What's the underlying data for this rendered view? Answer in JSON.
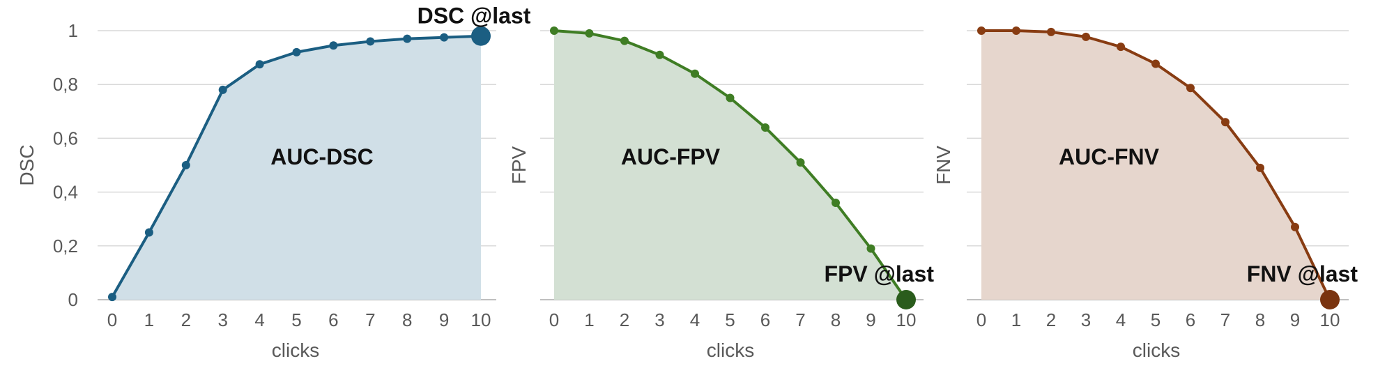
{
  "chart_data": [
    {
      "type": "area",
      "x": [
        0,
        1,
        2,
        3,
        4,
        5,
        6,
        7,
        8,
        9,
        10
      ],
      "series": [
        {
          "values": [
            0.01,
            0.25,
            0.5,
            0.78,
            0.875,
            0.92,
            0.945,
            0.96,
            0.97,
            0.975,
            0.98
          ]
        }
      ],
      "xlabel": "clicks",
      "ylabel": "DSC",
      "ylim": [
        0,
        1
      ],
      "yticks": [
        0,
        0.2,
        0.4,
        0.6,
        0.8,
        1
      ],
      "ytick_labels": [
        "0",
        "0,2",
        "0,4",
        "0,6",
        "0,8",
        "1"
      ],
      "show_ytick_labels": true,
      "area_label": "AUC-DSC",
      "end_label": "DSC @last",
      "end_label_position": "above",
      "grid": true,
      "line_color": "#1b5e82",
      "fill_color": "#d0dfe7"
    },
    {
      "type": "area",
      "x": [
        0,
        1,
        2,
        3,
        4,
        5,
        6,
        7,
        8,
        9,
        10
      ],
      "series": [
        {
          "values": [
            1.0,
            0.99,
            0.962,
            0.91,
            0.84,
            0.75,
            0.64,
            0.51,
            0.36,
            0.19,
            0.0
          ]
        }
      ],
      "xlabel": "clicks",
      "ylabel": "FPV",
      "ylim": [
        0,
        1
      ],
      "yticks": [
        0,
        0.2,
        0.4,
        0.6,
        0.8,
        1
      ],
      "show_ytick_labels": false,
      "area_label": "AUC-FPV",
      "end_label": "FPV @last",
      "end_label_position": "above-left",
      "grid": true,
      "line_color": "#3f7d24",
      "fill_color": "#d3e0d3",
      "end_marker_color": "#2a5c1c"
    },
    {
      "type": "area",
      "x": [
        0,
        1,
        2,
        3,
        4,
        5,
        6,
        7,
        8,
        9,
        10
      ],
      "series": [
        {
          "values": [
            1.0,
            1.0,
            0.995,
            0.977,
            0.94,
            0.877,
            0.787,
            0.66,
            0.49,
            0.27,
            0.0
          ]
        }
      ],
      "xlabel": "clicks",
      "ylabel": "FNV",
      "ylim": [
        0,
        1
      ],
      "yticks": [
        0,
        0.2,
        0.4,
        0.6,
        0.8,
        1
      ],
      "show_ytick_labels": false,
      "area_label": "AUC-FNV",
      "end_label": "FNV @last",
      "end_label_position": "above-left",
      "grid": true,
      "line_color": "#883c12",
      "fill_color": "#e6d6cd",
      "end_marker_color": "#7a3410"
    }
  ]
}
